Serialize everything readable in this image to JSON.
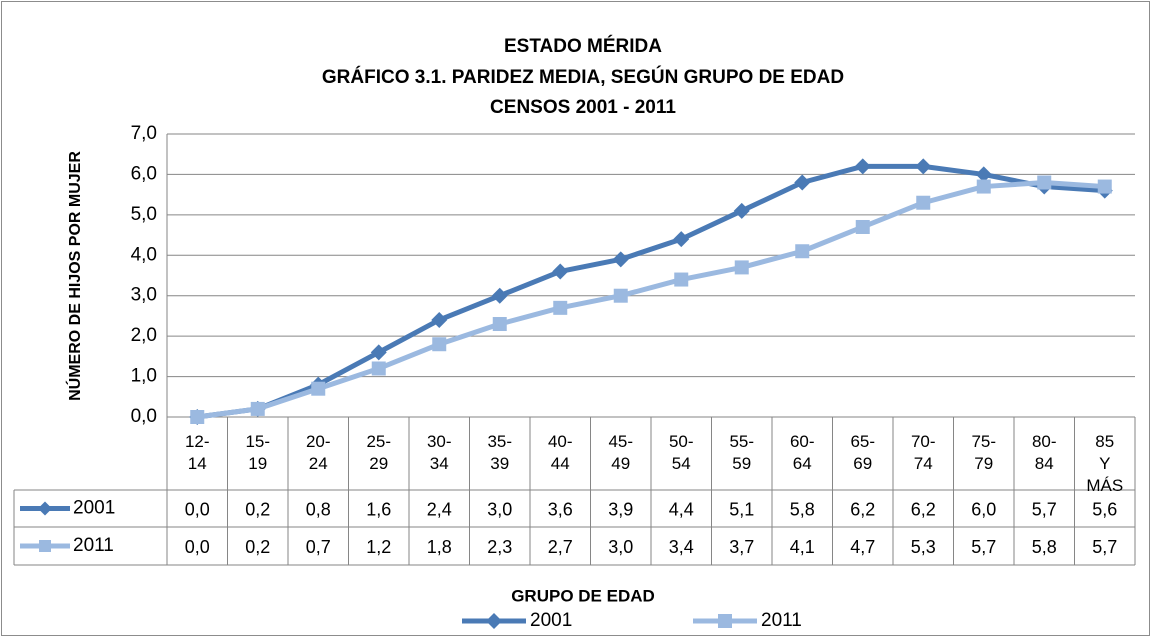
{
  "chart_data": {
    "type": "line",
    "title": [
      "ESTADO MÉRIDA",
      "GRÁFICO 3.1. PARIDEZ MEDIA, SEGÚN GRUPO DE EDAD",
      "CENSOS 2001 - 2011"
    ],
    "y_label": "NÚMERO DE HIJOS POR MUJER",
    "x_label": "GRUPO DE EDAD",
    "categories": [
      "12- 14",
      "15- 19",
      "20- 24",
      "25- 29",
      "30- 34",
      "35- 39",
      "40- 44",
      "45- 49",
      "50- 54",
      "55- 59",
      "60- 64",
      "65- 69",
      "70- 74",
      "75- 79",
      "80- 84",
      "85 Y MÁS"
    ],
    "series": [
      {
        "name": "2001",
        "color": "#4a7ab5",
        "marker": "diamond",
        "values": [
          0.0,
          0.2,
          0.8,
          1.6,
          2.4,
          3.0,
          3.6,
          3.9,
          4.4,
          5.1,
          5.8,
          6.2,
          6.2,
          6.0,
          5.7,
          5.6
        ],
        "value_labels": [
          "0,0",
          "0,2",
          "0,8",
          "1,6",
          "2,4",
          "3,0",
          "3,6",
          "3,9",
          "4,4",
          "5,1",
          "5,8",
          "6,2",
          "6,2",
          "6,0",
          "5,7",
          "5,6"
        ]
      },
      {
        "name": "2011",
        "color": "#9bb9e0",
        "marker": "square",
        "values": [
          0.0,
          0.2,
          0.7,
          1.2,
          1.8,
          2.3,
          2.7,
          3.0,
          3.4,
          3.7,
          4.1,
          4.7,
          5.3,
          5.7,
          5.8,
          5.7
        ],
        "value_labels": [
          "0,0",
          "0,2",
          "0,7",
          "1,2",
          "1,8",
          "2,3",
          "2,7",
          "3,0",
          "3,4",
          "3,7",
          "4,1",
          "4,7",
          "5,3",
          "5,7",
          "5,8",
          "5,7"
        ]
      }
    ],
    "ylim": [
      0,
      7
    ],
    "yticks": [
      {
        "value": 0,
        "label": "0,0"
      },
      {
        "value": 1,
        "label": "1,0"
      },
      {
        "value": 2,
        "label": "2,0"
      },
      {
        "value": 3,
        "label": "3,0"
      },
      {
        "value": 4,
        "label": "4,0"
      },
      {
        "value": 5,
        "label": "5,0"
      },
      {
        "value": 6,
        "label": "6,0"
      },
      {
        "value": 7,
        "label": "7,0"
      }
    ],
    "grid": true,
    "legend": "bottom"
  }
}
